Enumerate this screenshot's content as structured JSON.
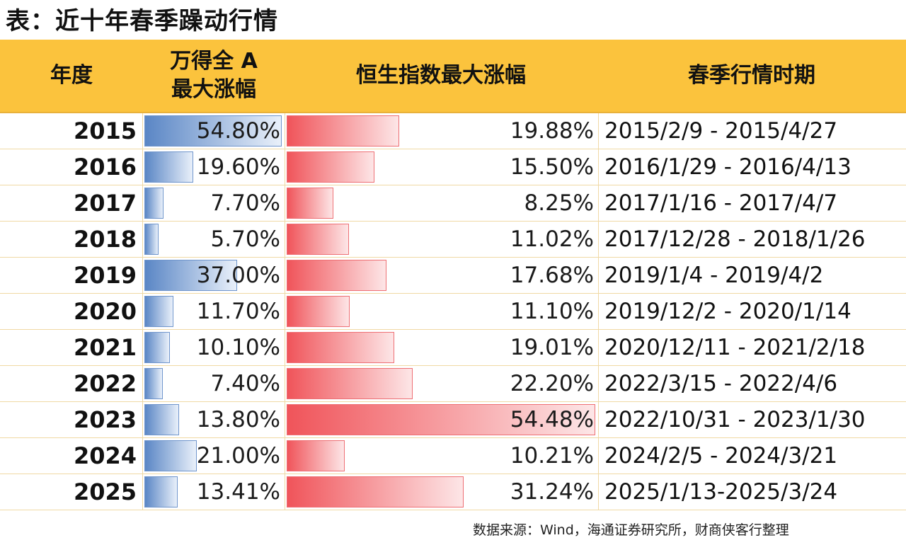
{
  "title": "表：近十年春季躁动行情",
  "headers": {
    "year": "年度",
    "a_share_line1": "万得全 A",
    "a_share_line2": "最大涨幅",
    "hsi": "恒生指数最大涨幅",
    "period": "春季行情时期"
  },
  "rows": [
    {
      "year": "2015",
      "a_share": "54.80%",
      "a_share_value": 54.8,
      "hsi": "19.88%",
      "hsi_value": 19.88,
      "period": "2015/2/9 - 2015/4/27"
    },
    {
      "year": "2016",
      "a_share": "19.60%",
      "a_share_value": 19.6,
      "hsi": "15.50%",
      "hsi_value": 15.5,
      "period": "2016/1/29 - 2016/4/13"
    },
    {
      "year": "2017",
      "a_share": "7.70%",
      "a_share_value": 7.7,
      "hsi": "8.25%",
      "hsi_value": 8.25,
      "period": "2017/1/16 - 2017/4/7"
    },
    {
      "year": "2018",
      "a_share": "5.70%",
      "a_share_value": 5.7,
      "hsi": "11.02%",
      "hsi_value": 11.02,
      "period": "2017/12/28 - 2018/1/26"
    },
    {
      "year": "2019",
      "a_share": "37.00%",
      "a_share_value": 37.0,
      "hsi": "17.68%",
      "hsi_value": 17.68,
      "period": "2019/1/4 - 2019/4/2"
    },
    {
      "year": "2020",
      "a_share": "11.70%",
      "a_share_value": 11.7,
      "hsi": "11.10%",
      "hsi_value": 11.1,
      "period": "2019/12/2 - 2020/1/14"
    },
    {
      "year": "2021",
      "a_share": "10.10%",
      "a_share_value": 10.1,
      "hsi": "19.01%",
      "hsi_value": 19.01,
      "period": "2020/12/11 - 2021/2/18"
    },
    {
      "year": "2022",
      "a_share": "7.40%",
      "a_share_value": 7.4,
      "hsi": "22.20%",
      "hsi_value": 22.2,
      "period": "2022/3/15 - 2022/4/6"
    },
    {
      "year": "2023",
      "a_share": "13.80%",
      "a_share_value": 13.8,
      "hsi": "54.48%",
      "hsi_value": 54.48,
      "period": "2022/10/31 - 2023/1/30"
    },
    {
      "year": "2024",
      "a_share": "21.00%",
      "a_share_value": 21.0,
      "hsi": "10.21%",
      "hsi_value": 10.21,
      "period": "2024/2/5 - 2024/3/21"
    },
    {
      "year": "2025",
      "a_share": "13.41%",
      "a_share_value": 13.41,
      "hsi": "31.24%",
      "hsi_value": 31.24,
      "period": "2025/1/13-2025/3/24"
    }
  ],
  "colors": {
    "header_bg": "#fbc33d",
    "a_share_bar": "#5a86c5",
    "hsi_bar": "#f0545a"
  },
  "source": "数据来源：Wind，海通证券研究所，财商侠客行整理"
}
